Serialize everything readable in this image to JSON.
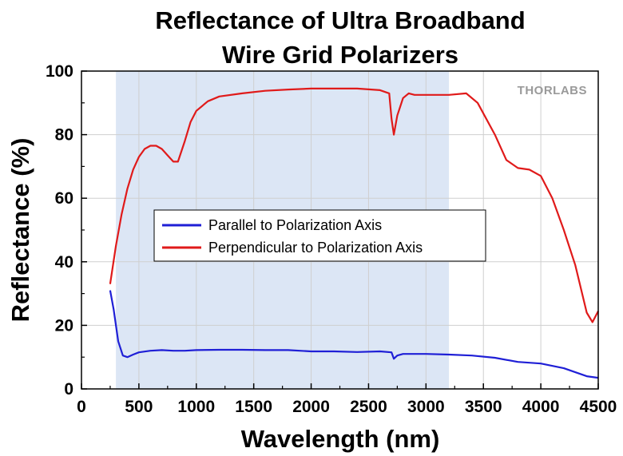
{
  "chart_data": {
    "type": "line",
    "title_lines": [
      "Reflectance of Ultra Broadband",
      "Wire Grid Polarizers"
    ],
    "xlabel": "Wavelength (nm)",
    "ylabel": "Reflectance (%)",
    "xlim": [
      0,
      4500
    ],
    "ylim": [
      0,
      100
    ],
    "x_ticks": [
      0,
      500,
      1000,
      1500,
      2000,
      2500,
      3000,
      3500,
      4000,
      4500
    ],
    "x_tick_labels": [
      "0",
      "500",
      "1000",
      "1500",
      "2000",
      "2500",
      "3000",
      "3500",
      "4000",
      "4500"
    ],
    "y_ticks": [
      0,
      20,
      40,
      60,
      80,
      100
    ],
    "y_tick_labels": [
      "0",
      "20",
      "40",
      "60",
      "80",
      "100"
    ],
    "grid": true,
    "shaded_region": {
      "x_start": 300,
      "x_end": 3200,
      "color": "#dce6f5"
    },
    "legend_position": "center-left",
    "logo_text": "THORLABS",
    "series": [
      {
        "name": "Parallel to Polarization Axis",
        "color": "#1f1fd6",
        "x": [
          250,
          280,
          320,
          360,
          400,
          450,
          500,
          600,
          700,
          800,
          900,
          1000,
          1200,
          1400,
          1600,
          1800,
          2000,
          2200,
          2400,
          2600,
          2700,
          2720,
          2750,
          2800,
          3000,
          3200,
          3400,
          3600,
          3800,
          4000,
          4200,
          4400,
          4500
        ],
        "y": [
          31,
          25,
          15,
          10.5,
          10.0,
          10.8,
          11.5,
          12.0,
          12.2,
          12.0,
          12.0,
          12.2,
          12.3,
          12.3,
          12.2,
          12.2,
          11.8,
          11.8,
          11.6,
          11.8,
          11.5,
          9.5,
          10.5,
          11.0,
          11.0,
          10.8,
          10.5,
          9.8,
          8.5,
          8.0,
          6.5,
          4.0,
          3.5
        ]
      },
      {
        "name": "Perpendicular to Polarization Axis",
        "color": "#e01a1a",
        "x": [
          250,
          300,
          350,
          400,
          450,
          500,
          550,
          600,
          650,
          700,
          750,
          800,
          840,
          900,
          950,
          1000,
          1100,
          1200,
          1400,
          1600,
          1800,
          2000,
          2200,
          2400,
          2600,
          2680,
          2700,
          2720,
          2750,
          2800,
          2850,
          2900,
          3000,
          3200,
          3350,
          3450,
          3600,
          3700,
          3800,
          3900,
          4000,
          4100,
          4200,
          4300,
          4400,
          4450,
          4500
        ],
        "y": [
          33,
          45,
          55,
          63,
          69,
          73,
          75.5,
          76.5,
          76.5,
          75.5,
          73.5,
          71.5,
          71.5,
          78,
          84,
          87.5,
          90.5,
          92,
          93,
          93.8,
          94.2,
          94.5,
          94.5,
          94.5,
          94,
          93,
          85,
          80,
          86,
          91.5,
          93,
          92.5,
          92.5,
          92.5,
          93,
          90,
          80,
          72,
          69.5,
          69,
          67,
          60,
          50,
          39,
          24,
          21,
          24.5
        ]
      }
    ]
  }
}
